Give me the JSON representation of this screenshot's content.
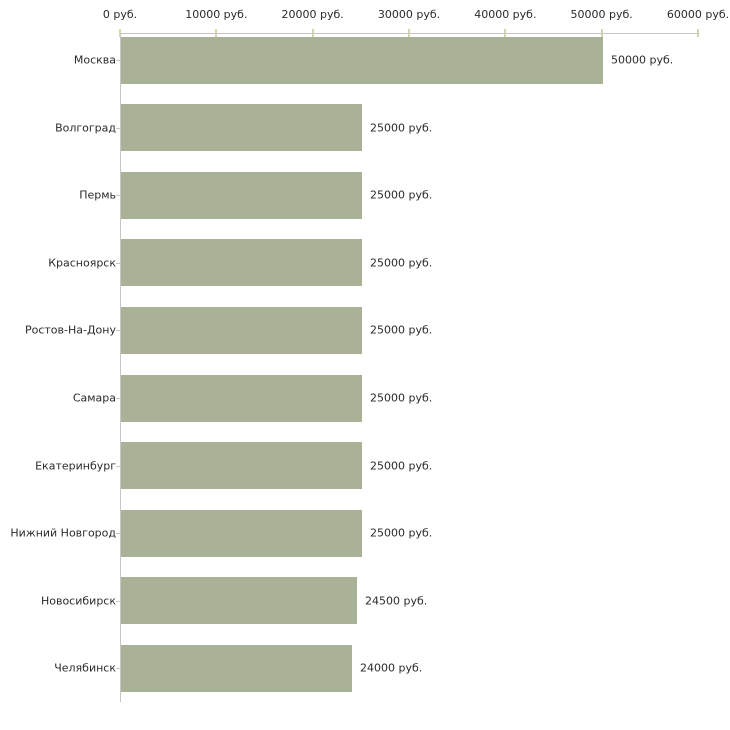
{
  "chart_data": {
    "type": "bar",
    "orientation": "horizontal",
    "title": "",
    "categories": [
      "Москва",
      "Волгоград",
      "Пермь",
      "Красноярск",
      "Ростов-На-Дону",
      "Самара",
      "Екатеринбург",
      "Нижний Новгород",
      "Новосибирск",
      "Челябинск"
    ],
    "values": [
      50000,
      25000,
      25000,
      25000,
      25000,
      25000,
      25000,
      25000,
      24500,
      24000
    ],
    "value_labels": [
      "50000 руб.",
      "25000 руб.",
      "25000 руб.",
      "25000 руб.",
      "25000 руб.",
      "25000 руб.",
      "25000 руб.",
      "25000 руб.",
      "24500 руб.",
      "24000 руб."
    ],
    "x_axis": {
      "position": "top",
      "min": 0,
      "max": 60000,
      "ticks": [
        0,
        10000,
        20000,
        30000,
        40000,
        50000,
        60000
      ],
      "tick_labels": [
        "0 руб.",
        "10000 руб.",
        "20000 руб.",
        "30000 руб.",
        "40000 руб.",
        "50000 руб.",
        "60000 руб."
      ]
    },
    "grid": false,
    "legend": false,
    "colors": {
      "bar": "#a9b196",
      "axis_line": "#c6c6c6",
      "x_tick_mark": "#d4d6b2",
      "y_tick_mark": "#c6c6c6",
      "text": "#2b2b2b",
      "background": "#ffffff"
    }
  }
}
